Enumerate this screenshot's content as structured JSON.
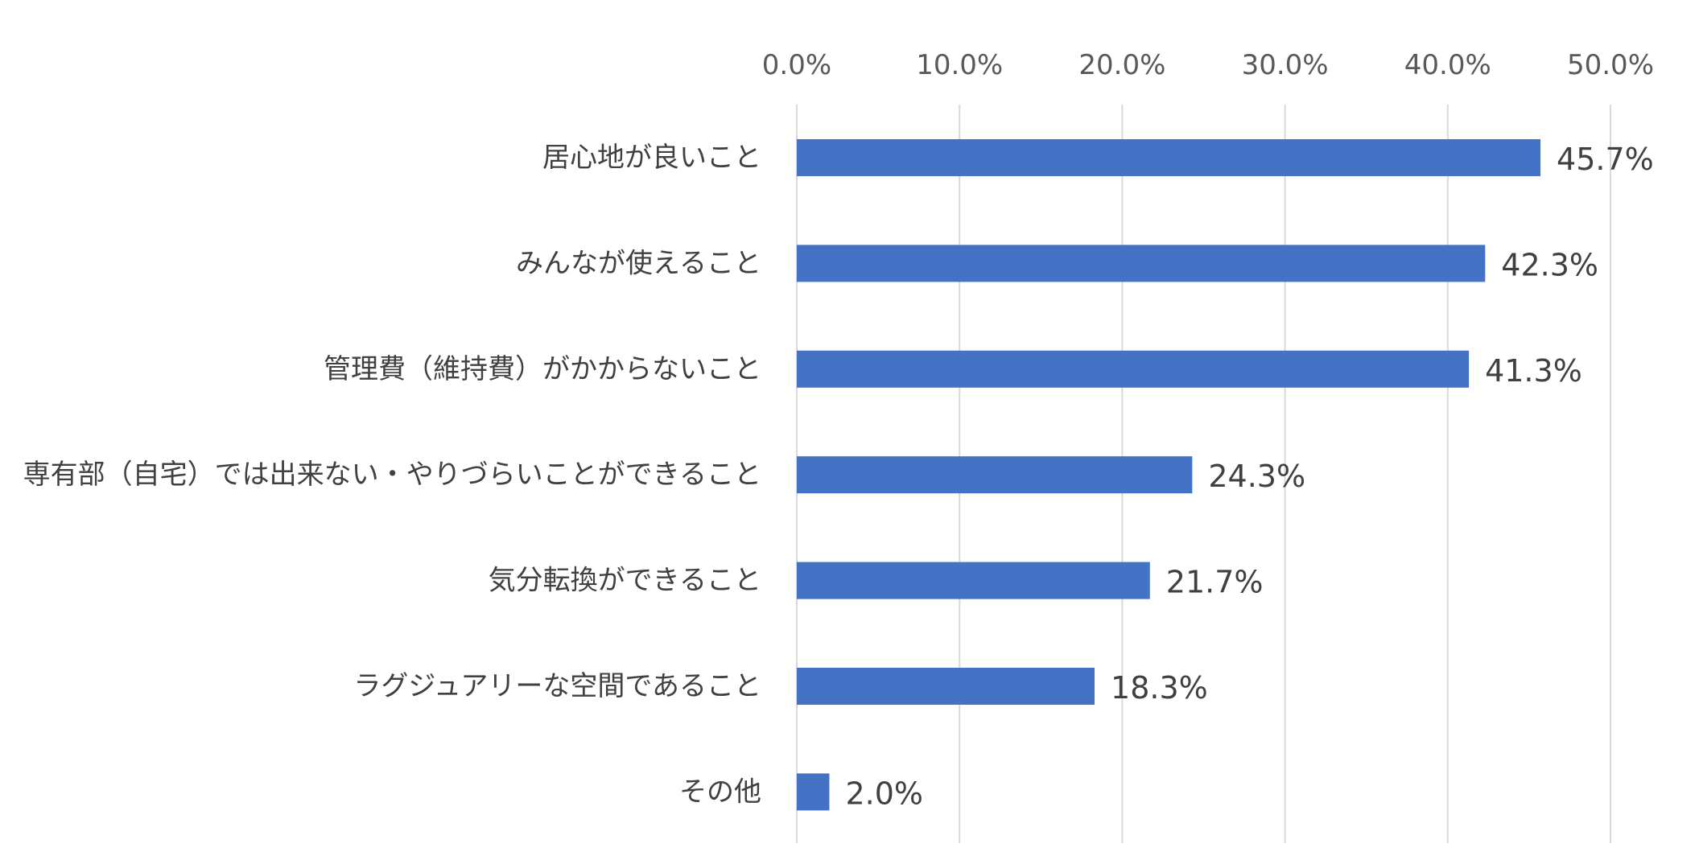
{
  "chart_data": {
    "type": "bar",
    "orientation": "horizontal",
    "title": "",
    "xlabel": "",
    "ylabel": "",
    "categories": [
      "居心地が良いこと",
      "みんなが使えること",
      "管理費（維持費）がかからないこと",
      "専有部（自宅）では出来ない・やりづらいことができること",
      "気分転換ができること",
      "ラグジュアリーな空間であること",
      "その他"
    ],
    "values": [
      45.7,
      42.3,
      41.3,
      24.3,
      21.7,
      18.3,
      2.0
    ],
    "data_labels": [
      "45.7%",
      "42.3%",
      "41.3%",
      "24.3%",
      "21.7%",
      "18.3%",
      "2.0%"
    ],
    "xlim": [
      0,
      50
    ],
    "x_ticks": [
      0,
      10,
      20,
      30,
      40,
      50
    ],
    "x_tick_labels": [
      "0.0%",
      "10.0%",
      "20.0%",
      "30.0%",
      "40.0%",
      "50.0%"
    ],
    "x_axis_position": "top",
    "grid": true,
    "legend": "none",
    "colors": {
      "bar": "#4472c4",
      "grid": "#d9d9d9",
      "tick_text": "#595959",
      "label_text": "#404040"
    }
  }
}
